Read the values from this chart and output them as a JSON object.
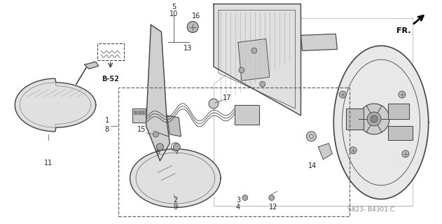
{
  "background_color": "#ffffff",
  "fig_width": 6.31,
  "fig_height": 3.2,
  "dpi": 100,
  "diagram_code": "S823- B4301 C",
  "fr_label": "FR.",
  "line_color": "#444444",
  "text_color": "#222222",
  "light_gray": "#aaaaaa",
  "mid_gray": "#888888",
  "fill_gray": "#d8d8d8"
}
